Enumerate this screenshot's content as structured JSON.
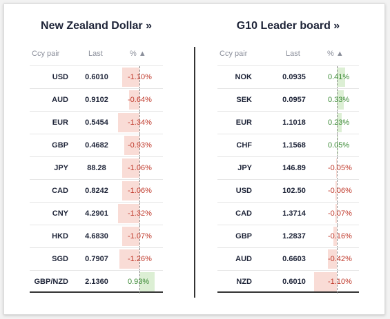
{
  "colors": {
    "negative": "#c0392b",
    "positive": "#3d8b37",
    "neg_bar": "#f9dcd6",
    "pos_bar": "#dcefd4"
  },
  "left": {
    "title": "New Zealand Dollar »",
    "headers": {
      "pair": "Ccy pair",
      "last": "Last",
      "pct": "% ▲"
    },
    "rows": [
      {
        "pair": "USD",
        "last": "0.6010",
        "pct": "-1.10%",
        "value": -1.1
      },
      {
        "pair": "AUD",
        "last": "0.9102",
        "pct": "-0.64%",
        "value": -0.64
      },
      {
        "pair": "EUR",
        "last": "0.5454",
        "pct": "-1.34%",
        "value": -1.34
      },
      {
        "pair": "GBP",
        "last": "0.4682",
        "pct": "-0.93%",
        "value": -0.93
      },
      {
        "pair": "JPY",
        "last": "88.28",
        "pct": "-1.06%",
        "value": -1.06
      },
      {
        "pair": "CAD",
        "last": "0.8242",
        "pct": "-1.06%",
        "value": -1.06
      },
      {
        "pair": "CNY",
        "last": "4.2901",
        "pct": "-1.32%",
        "value": -1.32
      },
      {
        "pair": "HKD",
        "last": "4.6830",
        "pct": "-1.07%",
        "value": -1.07
      },
      {
        "pair": "SGD",
        "last": "0.7907",
        "pct": "-1.26%",
        "value": -1.26
      },
      {
        "pair": "GBP/NZD",
        "last": "2.1360",
        "pct": "0.93%",
        "value": 0.93
      }
    ]
  },
  "right": {
    "title": "G10 Leader board »",
    "headers": {
      "pair": "Ccy pair",
      "last": "Last",
      "pct": "% ▲"
    },
    "rows": [
      {
        "pair": "NOK",
        "last": "0.0935",
        "pct": "0.41%",
        "value": 0.41
      },
      {
        "pair": "SEK",
        "last": "0.0957",
        "pct": "0.33%",
        "value": 0.33
      },
      {
        "pair": "EUR",
        "last": "1.1018",
        "pct": "0.23%",
        "value": 0.23
      },
      {
        "pair": "CHF",
        "last": "1.1568",
        "pct": "0.05%",
        "value": 0.05
      },
      {
        "pair": "JPY",
        "last": "146.89",
        "pct": "-0.05%",
        "value": -0.05
      },
      {
        "pair": "USD",
        "last": "102.50",
        "pct": "-0.06%",
        "value": -0.06
      },
      {
        "pair": "CAD",
        "last": "1.3714",
        "pct": "-0.07%",
        "value": -0.07
      },
      {
        "pair": "GBP",
        "last": "1.2837",
        "pct": "-0.16%",
        "value": -0.16
      },
      {
        "pair": "AUD",
        "last": "0.6603",
        "pct": "-0.42%",
        "value": -0.42
      },
      {
        "pair": "NZD",
        "last": "0.6010",
        "pct": "-1.10%",
        "value": -1.1
      }
    ]
  }
}
